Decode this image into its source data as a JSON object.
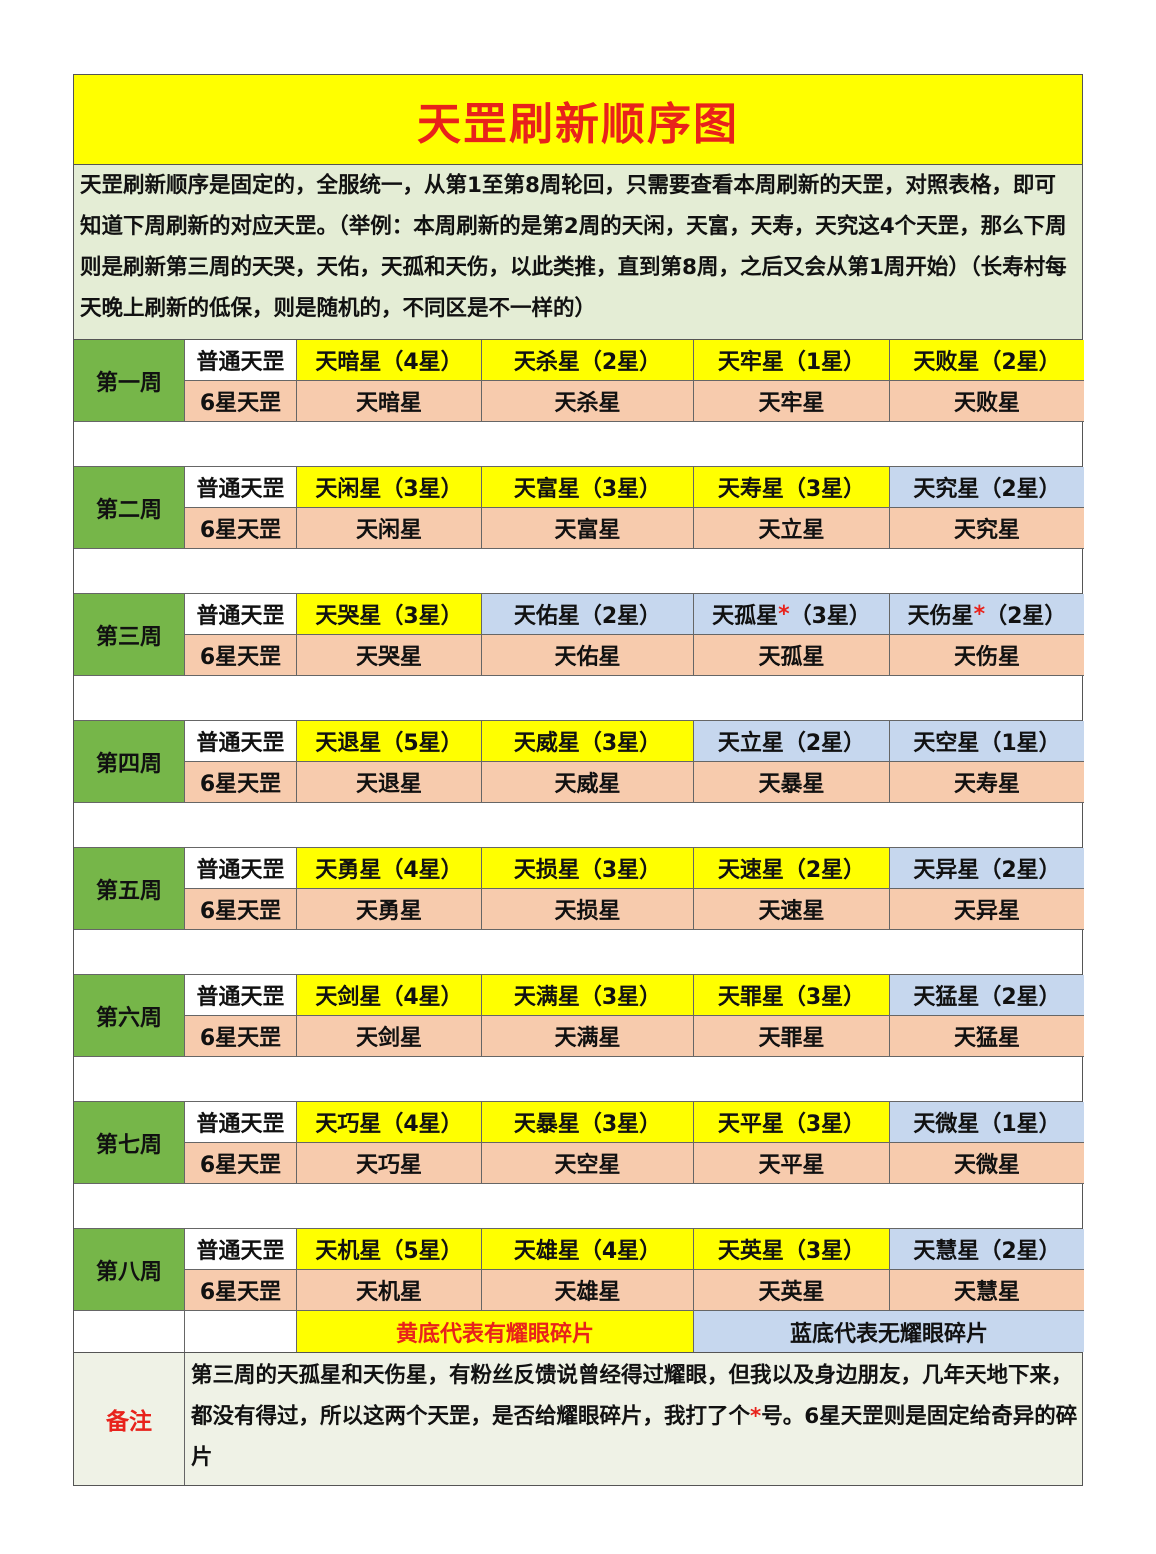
{
  "title": "天罡刷新顺序图",
  "intro": "天罡刷新顺序是固定的，全服统一，从第1至第8周轮回，只需要查看本周刷新的天罡，对照表格，即可知道下周刷新的对应天罡。（举例：本周刷新的是第2周的天闲，天富，天寿，天究这4个天罡，那么下周则是刷新第三周的天哭，天佑，天孤和天伤，以此类推，直到第8周，之后又会从第1周开始）（长寿村每天晚上刷新的低保，则是随机的，不同区是不一样的）",
  "colors": {
    "yellow_has_shard": "#ffff00",
    "blue_no_shard": "#c6d7ee",
    "six_star": "#f7cbad",
    "week_label": "#76b649",
    "red": "#e8221b"
  },
  "type_labels": {
    "normal": "普通天罡",
    "six": "6星天罡"
  },
  "weeks": [
    {
      "label": "第一周",
      "normal": [
        {
          "name": "天暗星",
          "mark": "",
          "stars": "（4星）",
          "shard": "yellow"
        },
        {
          "name": "天杀星",
          "mark": "",
          "stars": "（2星）",
          "shard": "yellow"
        },
        {
          "name": "天牢星",
          "mark": "",
          "stars": "（1星）",
          "shard": "yellow"
        },
        {
          "name": "天败星",
          "mark": "",
          "stars": "（2星）",
          "shard": "yellow"
        }
      ],
      "six": [
        "天暗星",
        "天杀星",
        "天牢星",
        "天败星"
      ]
    },
    {
      "label": "第二周",
      "normal": [
        {
          "name": "天闲星",
          "mark": "",
          "stars": "（3星）",
          "shard": "yellow"
        },
        {
          "name": "天富星",
          "mark": "",
          "stars": "（3星）",
          "shard": "yellow"
        },
        {
          "name": "天寿星",
          "mark": "",
          "stars": "（3星）",
          "shard": "yellow"
        },
        {
          "name": "天究星",
          "mark": "",
          "stars": "（2星）",
          "shard": "blue"
        }
      ],
      "six": [
        "天闲星",
        "天富星",
        "天立星",
        "天究星"
      ]
    },
    {
      "label": "第三周",
      "normal": [
        {
          "name": "天哭星",
          "mark": "",
          "stars": "（3星）",
          "shard": "yellow"
        },
        {
          "name": "天佑星",
          "mark": "",
          "stars": "（2星）",
          "shard": "blue"
        },
        {
          "name": "天孤星",
          "mark": "*",
          "stars": "（3星）",
          "shard": "blue"
        },
        {
          "name": "天伤星",
          "mark": "*",
          "stars": "（2星）",
          "shard": "blue"
        }
      ],
      "six": [
        "天哭星",
        "天佑星",
        "天孤星",
        "天伤星"
      ]
    },
    {
      "label": "第四周",
      "normal": [
        {
          "name": "天退星",
          "mark": "",
          "stars": "（5星）",
          "shard": "yellow"
        },
        {
          "name": "天威星",
          "mark": "",
          "stars": "（3星）",
          "shard": "yellow"
        },
        {
          "name": "天立星",
          "mark": "",
          "stars": "（2星）",
          "shard": "blue"
        },
        {
          "name": "天空星",
          "mark": "",
          "stars": "（1星）",
          "shard": "blue"
        }
      ],
      "six": [
        "天退星",
        "天威星",
        "天暴星",
        "天寿星"
      ]
    },
    {
      "label": "第五周",
      "normal": [
        {
          "name": "天勇星",
          "mark": "",
          "stars": "（4星）",
          "shard": "yellow"
        },
        {
          "name": "天损星",
          "mark": "",
          "stars": "（3星）",
          "shard": "yellow"
        },
        {
          "name": "天速星",
          "mark": "",
          "stars": "（2星）",
          "shard": "yellow"
        },
        {
          "name": "天异星",
          "mark": "",
          "stars": "（2星）",
          "shard": "blue"
        }
      ],
      "six": [
        "天勇星",
        "天损星",
        "天速星",
        "天异星"
      ]
    },
    {
      "label": "第六周",
      "normal": [
        {
          "name": "天剑星",
          "mark": "",
          "stars": "（4星）",
          "shard": "yellow"
        },
        {
          "name": "天满星",
          "mark": "",
          "stars": "（3星）",
          "shard": "yellow"
        },
        {
          "name": "天罪星",
          "mark": "",
          "stars": "（3星）",
          "shard": "yellow"
        },
        {
          "name": "天猛星",
          "mark": "",
          "stars": "（2星）",
          "shard": "blue"
        }
      ],
      "six": [
        "天剑星",
        "天满星",
        "天罪星",
        "天猛星"
      ]
    },
    {
      "label": "第七周",
      "normal": [
        {
          "name": "天巧星",
          "mark": "",
          "stars": "（4星）",
          "shard": "yellow"
        },
        {
          "name": "天暴星",
          "mark": "",
          "stars": "（3星）",
          "shard": "yellow"
        },
        {
          "name": "天平星",
          "mark": "",
          "stars": "（3星）",
          "shard": "yellow"
        },
        {
          "name": "天微星",
          "mark": "",
          "stars": "（1星）",
          "shard": "blue"
        }
      ],
      "six": [
        "天巧星",
        "天空星",
        "天平星",
        "天微星"
      ]
    },
    {
      "label": "第八周",
      "normal": [
        {
          "name": "天机星",
          "mark": "",
          "stars": "（5星）",
          "shard": "yellow"
        },
        {
          "name": "天雄星",
          "mark": "",
          "stars": "（4星）",
          "shard": "yellow"
        },
        {
          "name": "天英星",
          "mark": "",
          "stars": "（3星）",
          "shard": "yellow"
        },
        {
          "name": "天慧星",
          "mark": "",
          "stars": "（2星）",
          "shard": "blue"
        }
      ],
      "six": [
        "天机星",
        "天雄星",
        "天英星",
        "天慧星"
      ]
    }
  ],
  "legend": {
    "yellow": "黄底代表有耀眼碎片",
    "blue": "蓝底代表无耀眼碎片"
  },
  "notes": {
    "label": "备注",
    "text_before": "第三周的天孤星和天伤星，有粉丝反馈说曾经得过耀眼，但我以及身边朋友，几年天地下来，都没有得过，所以这两个天罡，是否给耀眼碎片，我打了个",
    "mark": "*",
    "text_after": "号。6星天罡则是固定给奇异的碎片"
  }
}
